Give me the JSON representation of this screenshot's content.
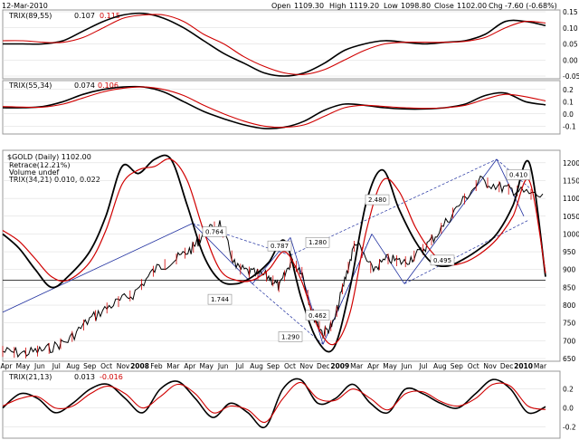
{
  "header": {
    "date": "12-Mar-2010",
    "open_label": "Open",
    "open": "1109.30",
    "high_label": "High",
    "high": "1119.20",
    "low_label": "Low",
    "low": "1098.80",
    "close_label": "Close",
    "close": "1102.00",
    "chg_label": "Chg",
    "chg": "-7.60 (-0.68%)"
  },
  "colors": {
    "primary": "#000000",
    "signal": "#d00000",
    "trend": "#1f2f9f",
    "grid": "#d8d8d8"
  },
  "x_axis": {
    "ticks": [
      "Apr",
      "May",
      "Jun",
      "Jul",
      "Aug",
      "Sep",
      "Oct",
      "Nov",
      "2008",
      "Feb",
      "Mar",
      "Apr",
      "May",
      "Jun",
      "Jul",
      "Aug",
      "Sep",
      "Oct",
      "Nov",
      "Dec",
      "2009",
      "Mar",
      "Apr",
      "May",
      "Jun",
      "Jul",
      "Aug",
      "Sep",
      "Oct",
      "Nov",
      "Dec",
      "2010",
      "Mar"
    ],
    "bold_ticks": [
      "2008",
      "2009",
      "2010"
    ]
  },
  "chart_data": [
    {
      "type": "line",
      "panel": "trix_89_55",
      "legend": {
        "name": "TRIX(89,55)",
        "value": "0.107",
        "signal_value": "0.115"
      },
      "ylim": [
        -0.05,
        0.15
      ],
      "yticks": [
        "0.15",
        "0.10",
        "0.05",
        "0.00",
        "-0.05"
      ],
      "series": [
        {
          "name": "TRIX",
          "values": [
            0.05,
            0.05,
            0.05,
            0.06,
            0.09,
            0.12,
            0.14,
            0.145,
            0.13,
            0.1,
            0.06,
            0.02,
            -0.01,
            -0.04,
            -0.05,
            -0.04,
            -0.01,
            0.03,
            0.05,
            0.06,
            0.055,
            0.05,
            0.055,
            0.06,
            0.08,
            0.12,
            0.12,
            0.107
          ]
        },
        {
          "name": "Signal",
          "values": [
            0.06,
            0.06,
            0.055,
            0.055,
            0.07,
            0.1,
            0.13,
            0.14,
            0.14,
            0.12,
            0.08,
            0.05,
            0.01,
            -0.02,
            -0.04,
            -0.045,
            -0.03,
            0.0,
            0.03,
            0.05,
            0.055,
            0.055,
            0.055,
            0.058,
            0.07,
            0.1,
            0.12,
            0.115
          ]
        }
      ]
    },
    {
      "type": "line",
      "panel": "trix_55_34",
      "legend": {
        "name": "TRIX(55,34)",
        "value": "0.074",
        "signal_value": "0.106"
      },
      "ylim": [
        -0.15,
        0.25
      ],
      "yticks": [
        "0.2",
        "0.1",
        "0.0",
        "-0.1"
      ],
      "series": [
        {
          "name": "TRIX",
          "values": [
            0.05,
            0.05,
            0.06,
            0.1,
            0.16,
            0.2,
            0.22,
            0.22,
            0.18,
            0.1,
            0.02,
            -0.04,
            -0.09,
            -0.12,
            -0.11,
            -0.06,
            0.03,
            0.08,
            0.07,
            0.05,
            0.04,
            0.04,
            0.05,
            0.08,
            0.15,
            0.17,
            0.1,
            0.074
          ]
        },
        {
          "name": "Signal",
          "values": [
            0.06,
            0.055,
            0.055,
            0.08,
            0.13,
            0.18,
            0.21,
            0.22,
            0.2,
            0.15,
            0.07,
            0.0,
            -0.06,
            -0.1,
            -0.11,
            -0.09,
            -0.02,
            0.05,
            0.07,
            0.06,
            0.05,
            0.045,
            0.05,
            0.07,
            0.12,
            0.16,
            0.14,
            0.106
          ]
        }
      ]
    },
    {
      "type": "line",
      "panel": "price",
      "title": "$GOLD (Daily) 1102.00",
      "legend": [
        "Retrace(12.21%)",
        "Volume undef",
        "TRIX(34,21) 0.010, 0.022"
      ],
      "trix_value": "0.010",
      "trix_signal_value": "0.022",
      "ylim": [
        650,
        1225
      ],
      "yticks": [
        "1200",
        "1150",
        "1100",
        "1050",
        "1000",
        "950",
        "900",
        "850",
        "800",
        "750",
        "700",
        "650"
      ],
      "x": [
        0,
        0.04,
        0.08,
        0.12,
        0.16,
        0.2,
        0.24,
        0.28,
        0.32,
        0.35,
        0.37,
        0.4,
        0.43,
        0.46,
        0.49,
        0.51,
        0.53,
        0.55,
        0.57,
        0.59,
        0.61,
        0.63,
        0.65,
        0.68,
        0.71,
        0.74,
        0.77,
        0.8,
        0.84,
        0.88,
        0.92,
        0.95,
        1.0
      ],
      "price": [
        670,
        665,
        675,
        700,
        760,
        800,
        830,
        900,
        930,
        960,
        1000,
        1030,
        905,
        890,
        880,
        850,
        920,
        900,
        780,
        720,
        750,
        870,
        980,
        900,
        930,
        920,
        950,
        1000,
        1080,
        1150,
        1130,
        1120,
        1102
      ],
      "trix_series": [
        {
          "name": "TRIX(34,21)",
          "x": [
            0,
            0.03,
            0.06,
            0.09,
            0.12,
            0.16,
            0.19,
            0.22,
            0.25,
            0.28,
            0.31,
            0.34,
            0.37,
            0.4,
            0.43,
            0.46,
            0.49,
            0.52,
            0.55,
            0.58,
            0.61,
            0.64,
            0.67,
            0.7,
            0.73,
            0.76,
            0.79,
            0.82,
            0.85,
            0.88,
            0.91,
            0.94,
            0.97,
            1.0
          ],
          "values": [
            1000,
            960,
            900,
            850,
            880,
            950,
            1050,
            1190,
            1170,
            1210,
            1210,
            1080,
            940,
            870,
            860,
            880,
            920,
            980,
            820,
            700,
            680,
            850,
            1090,
            1180,
            1070,
            980,
            920,
            910,
            930,
            960,
            1000,
            1080,
            1200,
            880
          ]
        },
        {
          "name": "Signal",
          "x": [
            0,
            0.03,
            0.06,
            0.09,
            0.12,
            0.16,
            0.19,
            0.22,
            0.25,
            0.28,
            0.31,
            0.34,
            0.37,
            0.4,
            0.43,
            0.46,
            0.49,
            0.52,
            0.55,
            0.58,
            0.61,
            0.64,
            0.67,
            0.7,
            0.73,
            0.76,
            0.79,
            0.82,
            0.85,
            0.88,
            0.91,
            0.94,
            0.97,
            1.0
          ],
          "values": [
            1010,
            980,
            930,
            880,
            870,
            920,
            1010,
            1140,
            1180,
            1190,
            1210,
            1150,
            1010,
            900,
            870,
            870,
            900,
            950,
            870,
            740,
            690,
            780,
            1010,
            1150,
            1120,
            1020,
            950,
            915,
            920,
            945,
            985,
            1050,
            1150,
            890
          ]
        }
      ],
      "fib_labels": [
        "0.764",
        "0.787",
        "1.280",
        "2.480",
        "0.410",
        "0.495",
        "1.744",
        "1.290",
        "0.462"
      ],
      "hline": 870
    },
    {
      "type": "line",
      "panel": "trix_21_13",
      "legend": {
        "name": "TRIX(21,13)",
        "value": "0.013",
        "signal_value": "-0.016"
      },
      "ylim": [
        -0.3,
        0.35
      ],
      "yticks": [
        "0.2",
        "0.0",
        "-0.2"
      ],
      "series": [
        {
          "name": "TRIX",
          "values": [
            0.0,
            0.15,
            0.1,
            -0.05,
            0.05,
            0.2,
            0.25,
            0.1,
            -0.05,
            0.2,
            0.28,
            0.1,
            -0.1,
            0.05,
            -0.05,
            -0.2,
            0.2,
            0.3,
            0.05,
            0.1,
            0.25,
            0.05,
            -0.05,
            0.2,
            0.15,
            0.05,
            0.0,
            0.15,
            0.3,
            0.2,
            -0.05,
            0.013
          ]
        },
        {
          "name": "Signal",
          "values": [
            0.02,
            0.1,
            0.12,
            0.0,
            0.02,
            0.15,
            0.23,
            0.15,
            0.0,
            0.12,
            0.25,
            0.15,
            -0.05,
            0.02,
            -0.02,
            -0.15,
            0.1,
            0.27,
            0.1,
            0.08,
            0.2,
            0.1,
            -0.02,
            0.15,
            0.17,
            0.07,
            0.02,
            0.1,
            0.25,
            0.23,
            0.02,
            -0.016
          ]
        }
      ]
    }
  ]
}
